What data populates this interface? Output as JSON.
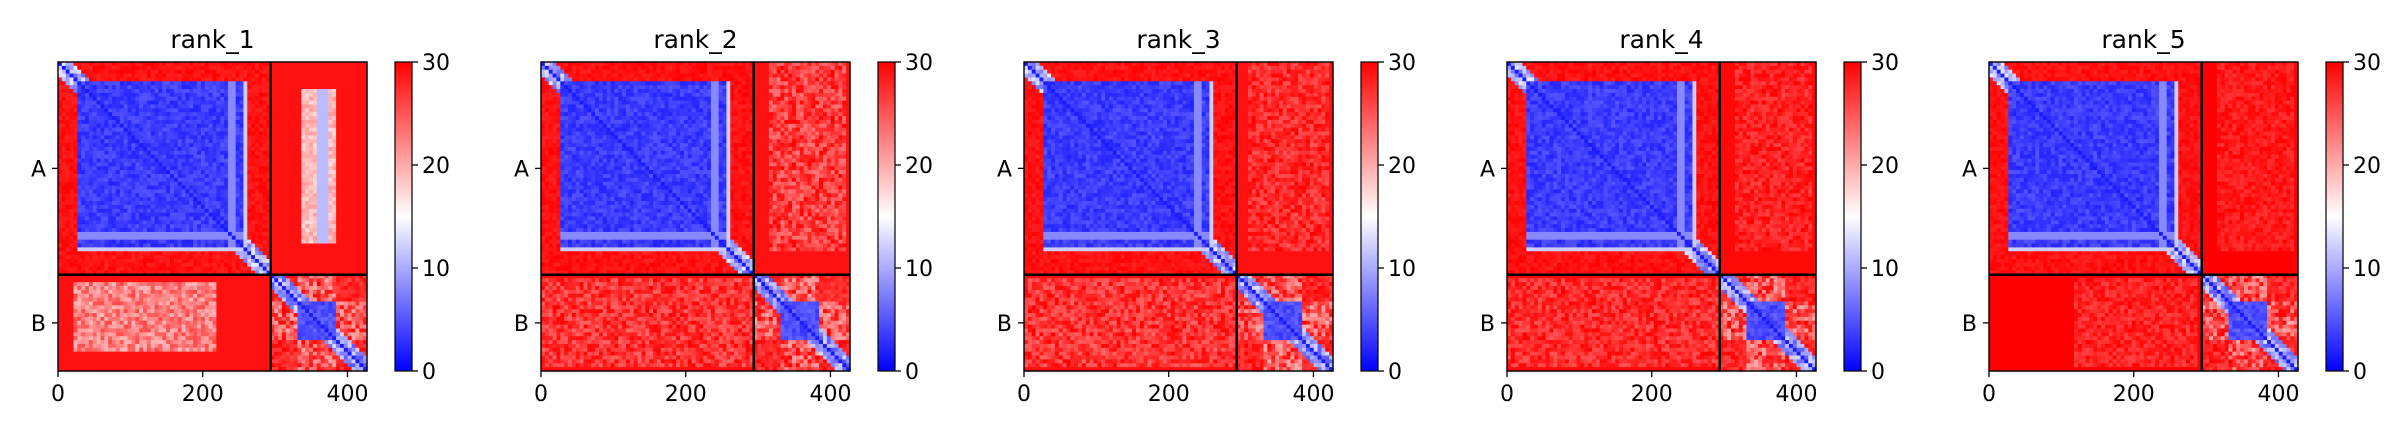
{
  "chart_data": [
    {
      "type": "heatmap",
      "title": "rank_1",
      "xlabel": "",
      "ylabel": "",
      "xlim": [
        0,
        427
      ],
      "x_ticks": [
        0,
        200,
        400
      ],
      "chain_lengths": [
        294,
        133
      ],
      "chain_labels": [
        "A",
        "B"
      ],
      "colorbar": {
        "range": [
          0,
          30
        ],
        "ticks": [
          0,
          10,
          20,
          30
        ],
        "colors": [
          "#0000ff",
          "#ffffff",
          "#ff0000"
        ]
      },
      "variant": 1
    },
    {
      "type": "heatmap",
      "title": "rank_2",
      "xlabel": "",
      "ylabel": "",
      "xlim": [
        0,
        427
      ],
      "x_ticks": [
        0,
        200,
        400
      ],
      "chain_lengths": [
        294,
        133
      ],
      "chain_labels": [
        "A",
        "B"
      ],
      "colorbar": {
        "range": [
          0,
          30
        ],
        "ticks": [
          0,
          10,
          20,
          30
        ],
        "colors": [
          "#0000ff",
          "#ffffff",
          "#ff0000"
        ]
      },
      "variant": 2
    },
    {
      "type": "heatmap",
      "title": "rank_3",
      "xlabel": "",
      "ylabel": "",
      "xlim": [
        0,
        427
      ],
      "x_ticks": [
        0,
        200,
        400
      ],
      "chain_lengths": [
        294,
        133
      ],
      "chain_labels": [
        "A",
        "B"
      ],
      "colorbar": {
        "range": [
          0,
          30
        ],
        "ticks": [
          0,
          10,
          20,
          30
        ],
        "colors": [
          "#0000ff",
          "#ffffff",
          "#ff0000"
        ]
      },
      "variant": 3
    },
    {
      "type": "heatmap",
      "title": "rank_4",
      "xlabel": "",
      "ylabel": "",
      "xlim": [
        0,
        427
      ],
      "x_ticks": [
        0,
        200,
        400
      ],
      "chain_lengths": [
        294,
        133
      ],
      "chain_labels": [
        "A",
        "B"
      ],
      "colorbar": {
        "range": [
          0,
          30
        ],
        "ticks": [
          0,
          10,
          20,
          30
        ],
        "colors": [
          "#0000ff",
          "#ffffff",
          "#ff0000"
        ]
      },
      "variant": 4
    },
    {
      "type": "heatmap",
      "title": "rank_5",
      "xlabel": "",
      "ylabel": "",
      "xlim": [
        0,
        427
      ],
      "x_ticks": [
        0,
        200,
        400
      ],
      "chain_lengths": [
        294,
        133
      ],
      "chain_labels": [
        "A",
        "B"
      ],
      "colorbar": {
        "range": [
          0,
          30
        ],
        "ticks": [
          0,
          10,
          20,
          30
        ],
        "colors": [
          "#0000ff",
          "#ffffff",
          "#ff0000"
        ]
      },
      "variant": 5
    }
  ]
}
